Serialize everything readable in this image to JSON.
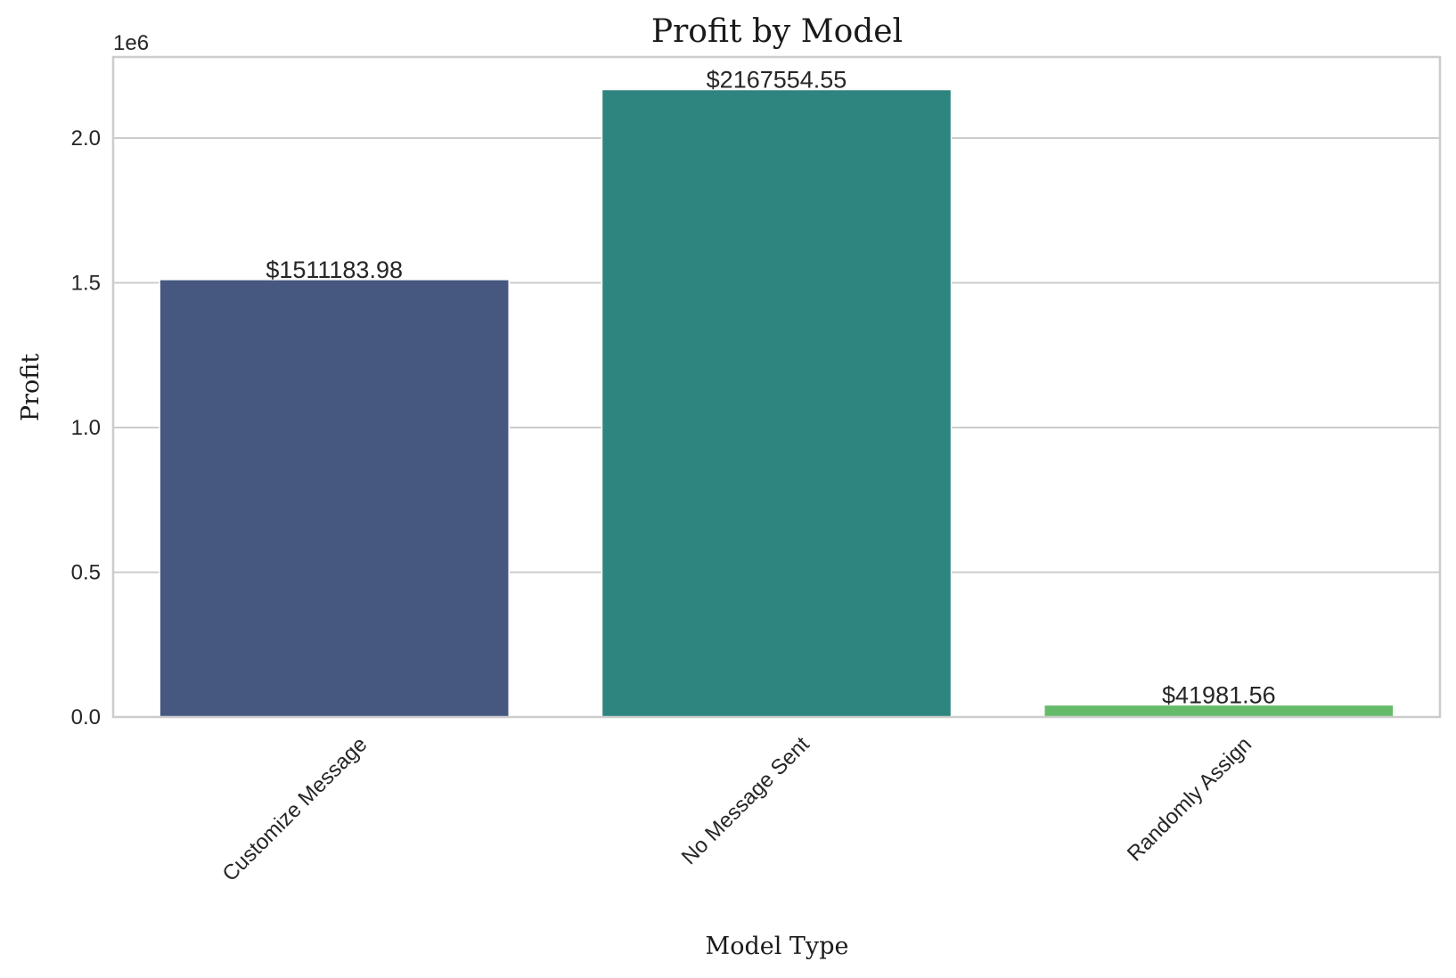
{
  "chart_data": {
    "type": "bar",
    "title": "Profit by Model",
    "xlabel": "Model Type",
    "ylabel": "Profit",
    "y_offset_label": "1e6",
    "categories": [
      "Customize Message",
      "No Message Sent",
      "Randomly Assign"
    ],
    "values": [
      1511183.98,
      2167554.55,
      41981.56
    ],
    "data_labels": [
      "$1511183.98",
      "$2167554.55",
      "$41981.56"
    ],
    "colors": [
      "#46587f",
      "#2e847e",
      "#66bb6a"
    ],
    "ylim": [
      0,
      2280000
    ],
    "yticks": [
      0,
      500000,
      1000000,
      1500000,
      2000000
    ],
    "ytick_labels": [
      "0.0",
      "0.5",
      "1.0",
      "1.5",
      "2.0"
    ],
    "xtick_rotation": "45 degrees",
    "grid": "horizontal",
    "legend": "none"
  }
}
